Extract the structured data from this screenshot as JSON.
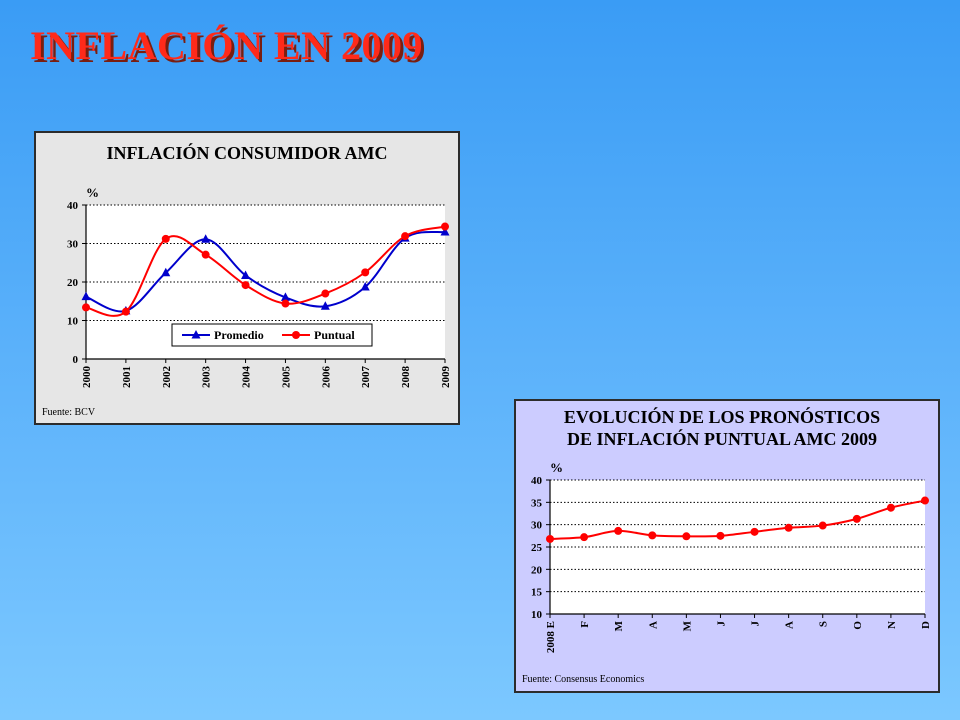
{
  "slide_title": "INFLACIÓN EN 2009",
  "chart_data": [
    {
      "type": "line",
      "title": "INFLACIÓN CONSUMIDOR AMC",
      "ylabel": "%",
      "xlabel": "",
      "categories": [
        "2000",
        "2001",
        "2002",
        "2003",
        "2004",
        "2005",
        "2006",
        "2007",
        "2008",
        "2009"
      ],
      "ylim": [
        0,
        40
      ],
      "yticks": [
        0,
        10,
        20,
        30,
        40
      ],
      "grid": "horizontal dotted",
      "legend": "bottom-right",
      "source": "Fuente: BCV",
      "series": [
        {
          "name": "Promedio",
          "color": "#0000cc",
          "marker": "triangle",
          "values": [
            16.2,
            12.5,
            22.4,
            31.1,
            21.7,
            16.0,
            13.7,
            18.7,
            31.4,
            33.0
          ]
        },
        {
          "name": "Puntual",
          "color": "#ff0000",
          "marker": "circle",
          "values": [
            13.4,
            12.3,
            31.2,
            27.1,
            19.2,
            14.4,
            17.0,
            22.5,
            31.9,
            34.4
          ]
        }
      ]
    },
    {
      "type": "line",
      "title": "EVOLUCIÓN DE LOS PRONÓSTICOS",
      "subtitle": "DE INFLACIÓN  PUNTUAL AMC 2009",
      "ylabel": "%",
      "xlabel": "",
      "categories": [
        "2008 E",
        "F",
        "M",
        "A",
        "M",
        "J",
        "J",
        "A",
        "S",
        "O",
        "N",
        "D"
      ],
      "ylim": [
        10,
        40
      ],
      "yticks": [
        10,
        15,
        20,
        25,
        30,
        35,
        40
      ],
      "grid": "horizontal dotted",
      "legend": "none",
      "source": "Fuente: Consensus Economics",
      "series": [
        {
          "name": "",
          "color": "#ff0000",
          "marker": "circle",
          "values": [
            26.8,
            27.2,
            28.6,
            27.6,
            27.4,
            27.5,
            28.4,
            29.3,
            29.8,
            31.3,
            33.8,
            35.4
          ]
        }
      ]
    }
  ]
}
